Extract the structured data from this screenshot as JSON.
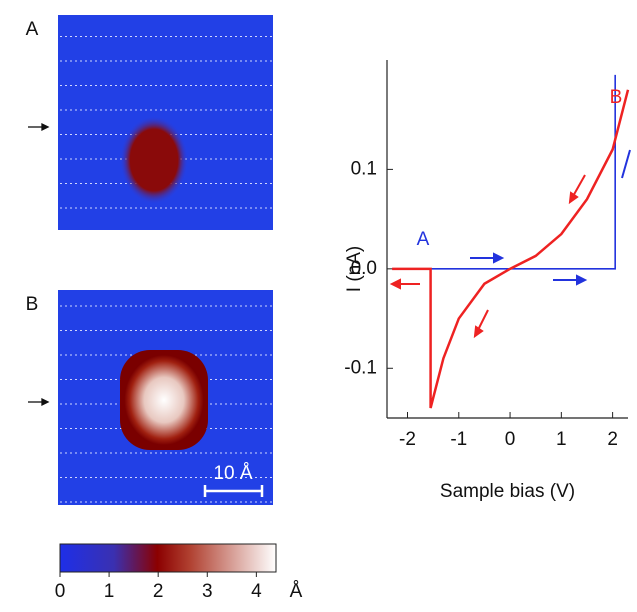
{
  "panels": [
    {
      "label": "A"
    },
    {
      "label": "B"
    }
  ],
  "scale_bar": "10 Å",
  "colorbar": {
    "lim": [
      0,
      4.4
    ],
    "ticks": [
      0,
      1,
      2,
      3,
      4
    ],
    "unit": "Å"
  },
  "chart_data": {
    "type": "line",
    "x_label": "Sample bias (V)",
    "y_label": "I (nA)",
    "xlim": [
      -2.4,
      2.3
    ],
    "ylim": [
      -0.15,
      0.21
    ],
    "xticks": [
      -2,
      -1,
      0,
      1,
      2
    ],
    "yticks": [
      -0.1,
      {
        "value": 0,
        "label": "0.0"
      },
      0.1
    ],
    "series": [
      {
        "name": "A",
        "color": "#2233dd",
        "x": [
          -2.3,
          2.05,
          2.05
        ],
        "values": [
          0,
          0,
          0.195
        ]
      },
      {
        "name": "B",
        "color": "#ee2222",
        "x": [
          2.3,
          2.0,
          1.5,
          1.0,
          0.5,
          0,
          -0.5,
          -1.0,
          -1.3,
          -1.55,
          -1.55,
          -2.3
        ],
        "values": [
          0.18,
          0.12,
          0.07,
          0.035,
          0.013,
          0,
          -0.015,
          -0.05,
          -0.09,
          -0.14,
          0,
          0
        ]
      }
    ]
  }
}
